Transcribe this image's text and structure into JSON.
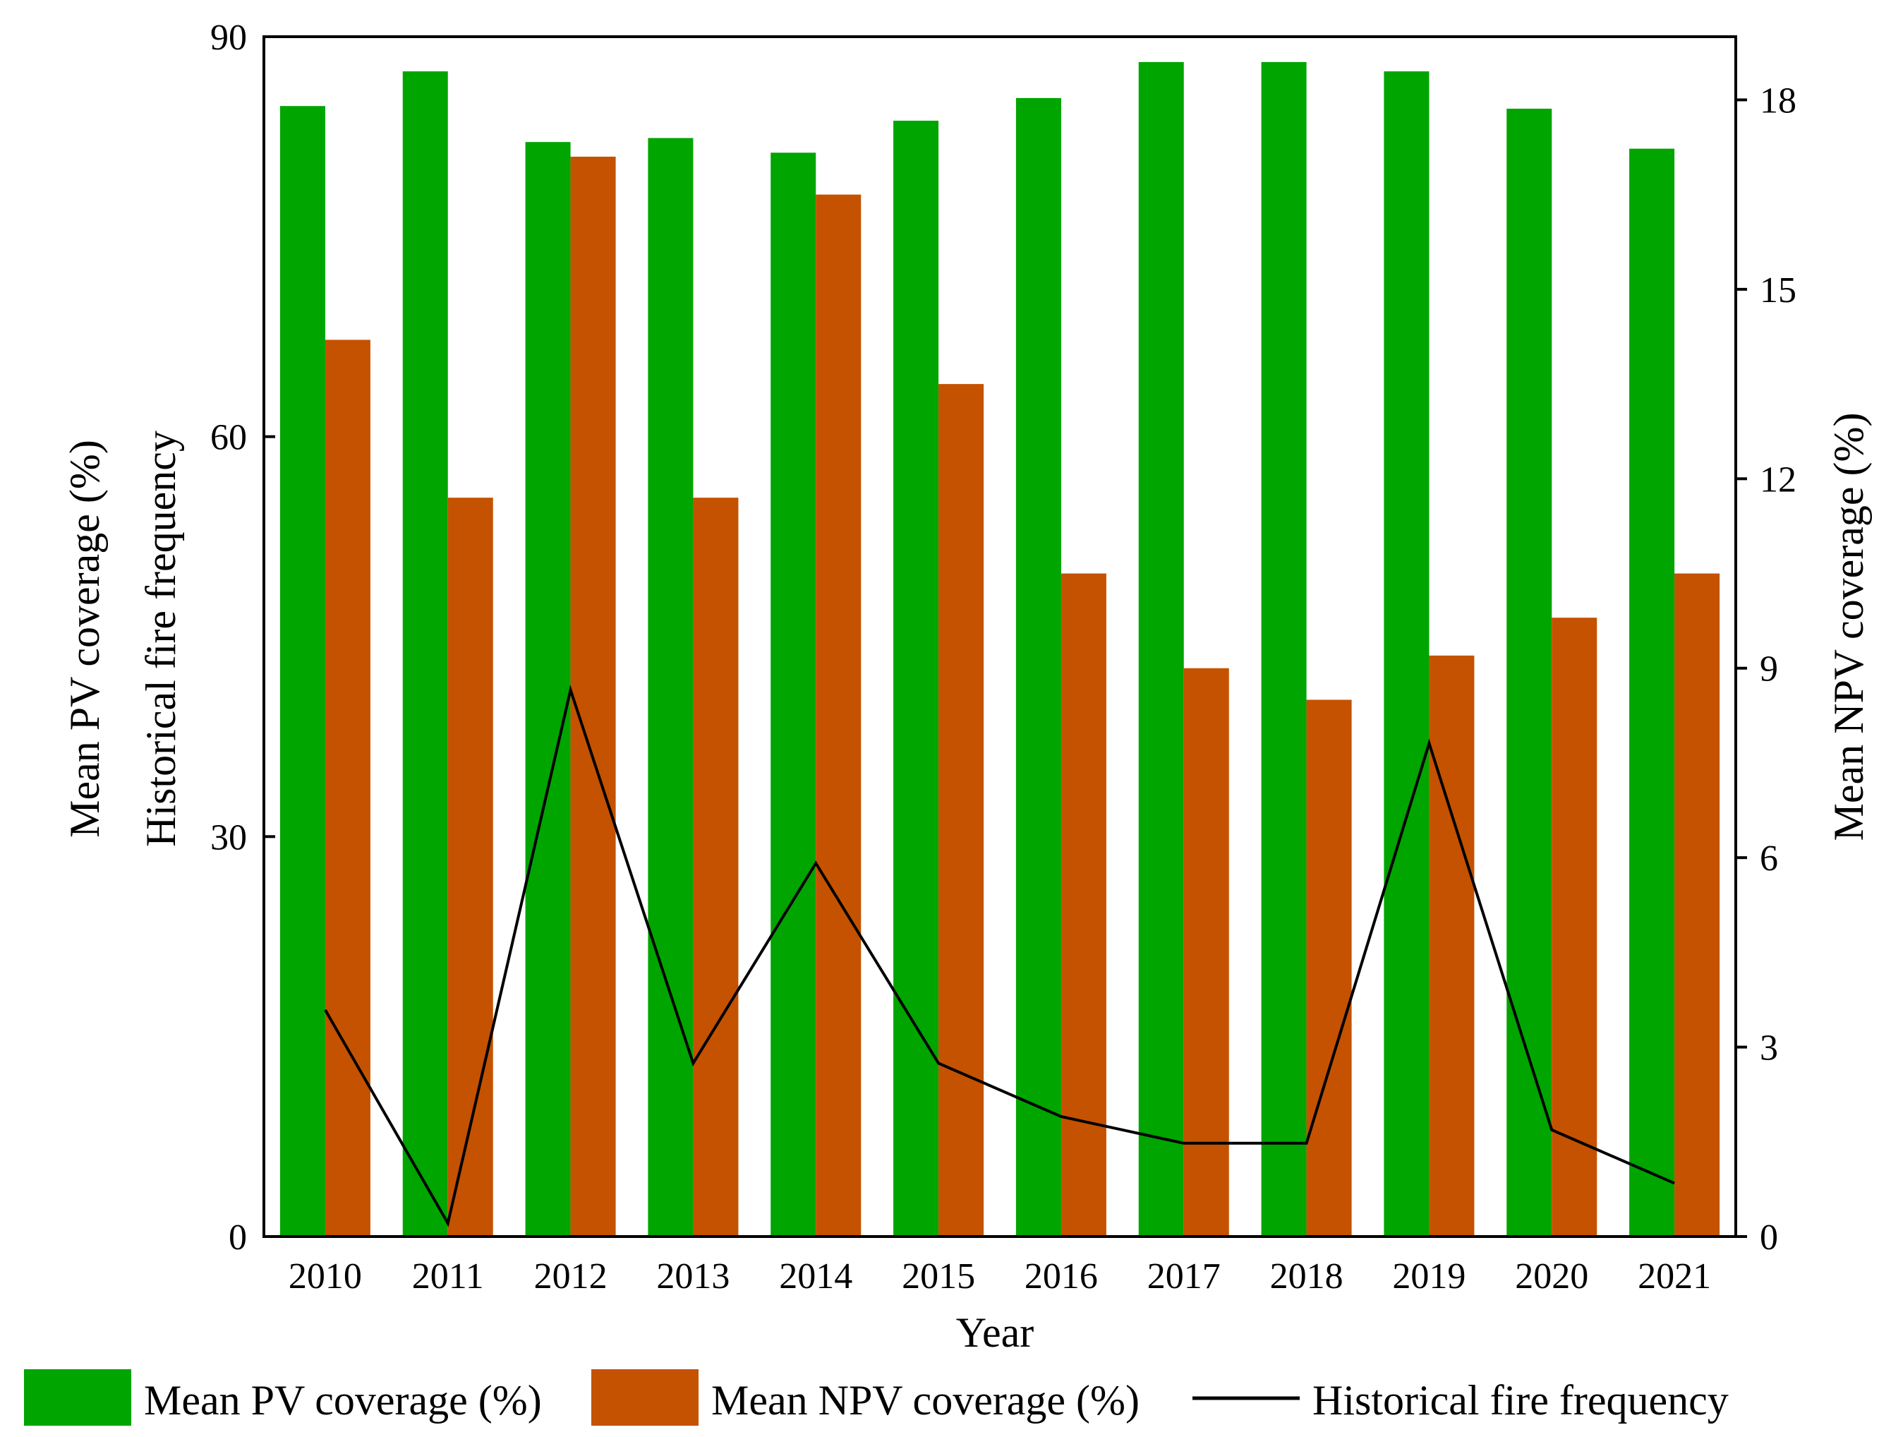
{
  "chart_data": {
    "type": "bar",
    "categories": [
      "2010",
      "2011",
      "2012",
      "2013",
      "2014",
      "2015",
      "2016",
      "2017",
      "2018",
      "2019",
      "2020",
      "2021"
    ],
    "series": [
      {
        "name": "Mean PV coverage (%)",
        "axis": "left",
        "kind": "bar",
        "color": "#00A500",
        "values": [
          84.8,
          87.4,
          82.1,
          82.4,
          81.3,
          83.7,
          85.4,
          88.1,
          88.1,
          87.4,
          84.6,
          81.6
        ]
      },
      {
        "name": "Mean NPV coverage (%)",
        "axis": "right",
        "kind": "bar",
        "color": "#C55200",
        "values": [
          14.2,
          11.7,
          17.1,
          11.7,
          16.5,
          13.5,
          10.5,
          9.0,
          8.5,
          9.2,
          9.8,
          10.5
        ]
      },
      {
        "name": "Historical fire frequency",
        "axis": "left",
        "kind": "line",
        "color": "#000000",
        "values": [
          17,
          1,
          41,
          13,
          28,
          13,
          9,
          7,
          7,
          37,
          8,
          4
        ]
      }
    ],
    "xlabel": "Year",
    "ylabel_left": [
      "Mean PV coverage (%)",
      "Historical fire frequency"
    ],
    "ylabel_right": "Mean NPV coverage (%)",
    "ylim_left": [
      0,
      90
    ],
    "ylim_right": [
      0,
      19
    ],
    "yticks_left": [
      "0",
      "30",
      "60",
      "90"
    ],
    "yticks_right": [
      "0",
      "3",
      "6",
      "9",
      "12",
      "15",
      "18"
    ],
    "yticks_left_values": [
      0,
      30,
      60,
      90
    ],
    "yticks_right_values": [
      0,
      3,
      6,
      9,
      12,
      15,
      18
    ],
    "grid": false,
    "legend_position": "bottom"
  }
}
